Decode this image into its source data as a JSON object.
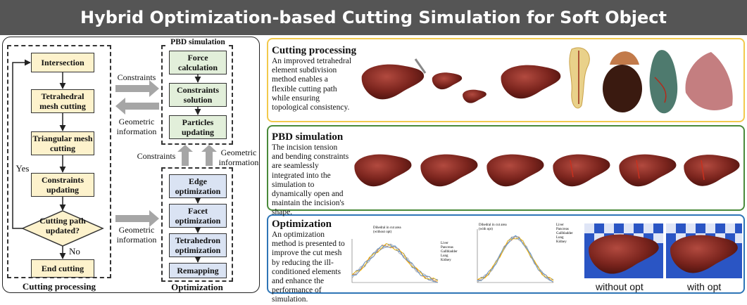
{
  "title": "Hybrid Optimization-based Cutting Simulation for Soft Object",
  "left": {
    "cutting": {
      "label": "Cutting processing",
      "steps": [
        "Intersection",
        "Tetrahedral mesh cutting",
        "Triangular mesh cutting",
        "Constraints updating"
      ],
      "decision": "Cutting path updated?",
      "end": "End cutting",
      "yes": "Yes",
      "no": "No"
    },
    "pbd": {
      "label": "PBD simulation",
      "steps": [
        "Force calculation",
        "Constraints solution",
        "Particles updating"
      ]
    },
    "opt": {
      "label": "Optimization",
      "steps": [
        "Edge optimization",
        "Facet optimization",
        "Tetrahedron optimization",
        "Remapping"
      ]
    },
    "arrows": {
      "constraints_1": "Constraints",
      "geometric_1": "Geometric information",
      "constraints_2": "Constraints",
      "geometric_2": "Geometric information",
      "geometric_3": "Geometric information"
    }
  },
  "right": {
    "cutting": {
      "title": "Cutting processing",
      "desc": "An improved tetrahedral element subdivision method enables a flexible cutting path while ensuring topological consistency."
    },
    "pbd": {
      "title": "PBD simulation",
      "desc": "The incision tension and bending constraints are seamlessly integrated into the simulation to dynamically open and maintain the incision's shape."
    },
    "opt": {
      "title": "Optimization",
      "desc": "An optimization method is presented to improve the cut mesh by reducing the ill-conditioned elements and enhance the performance of simulation.",
      "chart1_title": "Dihedral in cut area (without opt)",
      "chart2_title": "Dihedral in cut area (with opt)",
      "legend": [
        "Liver",
        "Pancreas",
        "Gallbladder",
        "Lung",
        "Kidney"
      ],
      "legend_colors": [
        "#4472c4",
        "#ed7d31",
        "#a5a5a5",
        "#ffc000",
        "#5b9bd5"
      ],
      "label_without": "without opt",
      "label_with": "with opt"
    }
  },
  "colors": {
    "title_bg": "#555555",
    "cutting_border": "#f2c94c",
    "pbd_border": "#4a8a3a",
    "opt_border": "#2e75b6"
  }
}
